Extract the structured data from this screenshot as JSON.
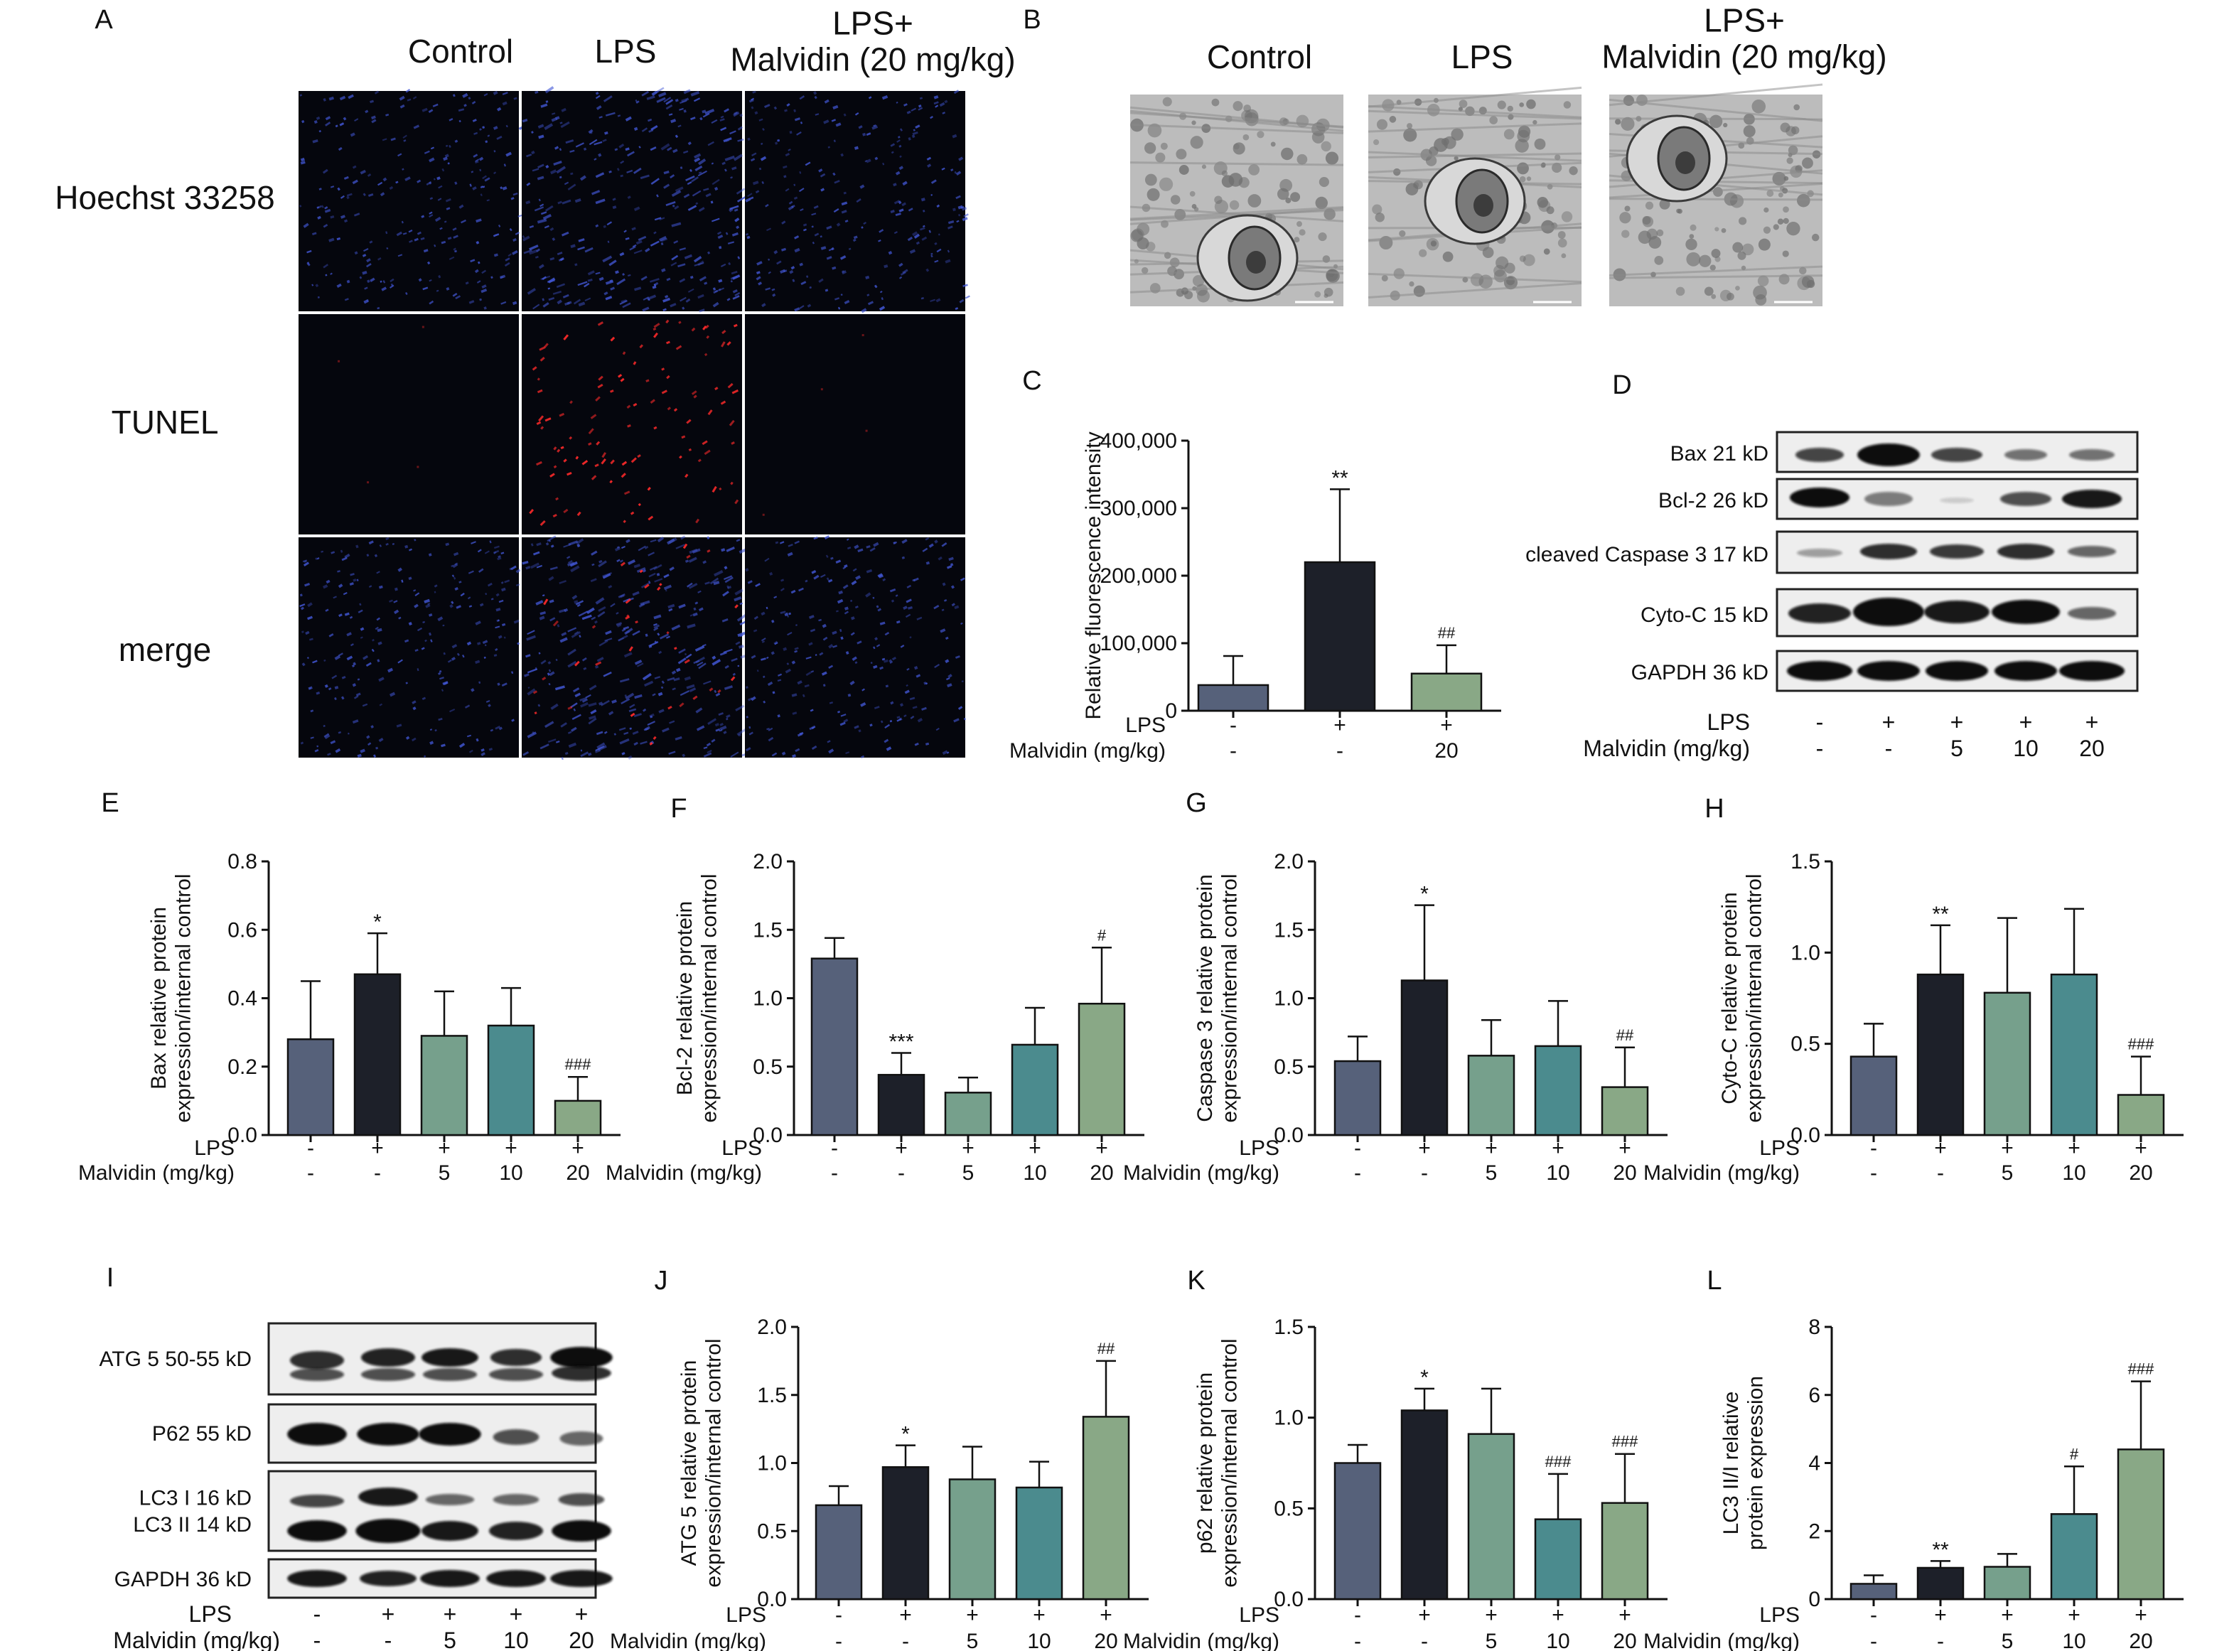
{
  "colors": {
    "control": "#56617a",
    "lps": "#1d2029",
    "m5": "#76a08c",
    "m10": "#4b8b8e",
    "m20": "#89a886",
    "blue_nuclei": "#4257d6",
    "red_tunel": "#ff2a2a",
    "em_gray": "#bcbcbc"
  },
  "panel_labels": [
    "A",
    "B",
    "C",
    "D",
    "E",
    "F",
    "G",
    "H",
    "I",
    "J",
    "K",
    "L"
  ],
  "panel_a": {
    "columns": [
      "Control",
      "LPS",
      "LPS+\nMalvidin (20 mg/kg)"
    ],
    "rows": [
      "Hoechst 33258",
      "TUNEL",
      "merge"
    ]
  },
  "panel_b": {
    "columns": [
      "Control",
      "LPS",
      "LPS+\nMalvidin (20 mg/kg)"
    ]
  },
  "panel_d": {
    "bands": [
      "Bax 21 kD",
      "Bcl-2 26 kD",
      "cleaved Caspase 3 17 kD",
      "Cyto-C 15 kD",
      "GAPDH 36 kD"
    ],
    "lps_label": "LPS",
    "malvidin_label": "Malvidin (mg/kg)",
    "lps": [
      "-",
      "+",
      "+",
      "+",
      "+"
    ],
    "malvidin": [
      "-",
      "-",
      "5",
      "10",
      "20"
    ]
  },
  "panel_i": {
    "bands": [
      "ATG 5 50-55 kD",
      "P62 55 kD",
      "LC3 I  16 kD\nLC3 II 14 kD",
      "GAPDH 36 kD"
    ],
    "lps_label": "LPS",
    "malvidin_label": "Malvidin (mg/kg)",
    "lps": [
      "-",
      "+",
      "+",
      "+",
      "+"
    ],
    "malvidin": [
      "-",
      "-",
      "5",
      "10",
      "20"
    ]
  },
  "chart_data": [
    {
      "panel": "C",
      "type": "bar",
      "ylabel": "Relative fluorescence intensity",
      "ylim": [
        0,
        400000
      ],
      "yticks": [
        "0",
        "100,000",
        "200,000",
        "300,000",
        "400,000"
      ],
      "row_labels": [
        "LPS",
        "Malvidin (mg/kg)"
      ],
      "lps": [
        "-",
        "+",
        "+"
      ],
      "malvidin": [
        "-",
        "-",
        "20"
      ],
      "values": [
        38000,
        220000,
        55000
      ],
      "errors": [
        43000,
        108000,
        42000
      ],
      "annotations": [
        "",
        "**",
        "##"
      ]
    },
    {
      "panel": "E",
      "type": "bar",
      "ylabel": "Bax relative protein\nexpression/internal control",
      "ylim": [
        0,
        0.8
      ],
      "yticks": [
        "0.0",
        "0.2",
        "0.4",
        "0.6",
        "0.8"
      ],
      "row_labels": [
        "LPS",
        "Malvidin (mg/kg)"
      ],
      "lps": [
        "-",
        "+",
        "+",
        "+",
        "+"
      ],
      "malvidin": [
        "-",
        "-",
        "5",
        "10",
        "20"
      ],
      "values": [
        0.28,
        0.47,
        0.29,
        0.32,
        0.1
      ],
      "errors": [
        0.17,
        0.12,
        0.13,
        0.11,
        0.07
      ],
      "annotations": [
        "",
        "*",
        "",
        "",
        "###"
      ]
    },
    {
      "panel": "F",
      "type": "bar",
      "ylabel": "Bcl-2 relative protein\nexpression/internal control",
      "ylim": [
        0,
        2.0
      ],
      "yticks": [
        "0.0",
        "0.5",
        "1.0",
        "1.5",
        "2.0"
      ],
      "row_labels": [
        "LPS",
        "Malvidin (mg/kg)"
      ],
      "lps": [
        "-",
        "+",
        "+",
        "+",
        "+"
      ],
      "malvidin": [
        "-",
        "-",
        "5",
        "10",
        "20"
      ],
      "values": [
        1.29,
        0.44,
        0.31,
        0.66,
        0.96
      ],
      "errors": [
        0.15,
        0.16,
        0.11,
        0.27,
        0.41
      ],
      "annotations": [
        "",
        "***",
        "",
        "",
        "#"
      ]
    },
    {
      "panel": "G",
      "type": "bar",
      "ylabel": "Caspase 3 relative protein\nexpression/internal control",
      "ylim": [
        0,
        2.0
      ],
      "yticks": [
        "0.0",
        "0.5",
        "1.0",
        "1.5",
        "2.0"
      ],
      "row_labels": [
        "LPS",
        "Malvidin (mg/kg)"
      ],
      "lps": [
        "-",
        "+",
        "+",
        "+",
        "+"
      ],
      "malvidin": [
        "-",
        "-",
        "5",
        "10",
        "20"
      ],
      "values": [
        0.54,
        1.13,
        0.58,
        0.65,
        0.35
      ],
      "errors": [
        0.18,
        0.55,
        0.26,
        0.33,
        0.29
      ],
      "annotations": [
        "",
        "*",
        "",
        "",
        "##"
      ]
    },
    {
      "panel": "H",
      "type": "bar",
      "ylabel": "Cyto-C relative protein\nexpression/internal control",
      "ylim": [
        0,
        1.5
      ],
      "yticks": [
        "0.0",
        "0.5",
        "1.0",
        "1.5"
      ],
      "row_labels": [
        "LPS",
        "Malvidin (mg/kg)"
      ],
      "lps": [
        "-",
        "+",
        "+",
        "+",
        "+"
      ],
      "malvidin": [
        "-",
        "-",
        "5",
        "10",
        "20"
      ],
      "values": [
        0.43,
        0.88,
        0.78,
        0.88,
        0.22
      ],
      "errors": [
        0.18,
        0.27,
        0.41,
        0.36,
        0.21
      ],
      "annotations": [
        "",
        "**",
        "",
        "",
        "###"
      ]
    },
    {
      "panel": "J",
      "type": "bar",
      "ylabel": "ATG 5 relative protein\nexpression/internal control",
      "ylim": [
        0,
        2.0
      ],
      "yticks": [
        "0.0",
        "0.5",
        "1.0",
        "1.5",
        "2.0"
      ],
      "row_labels": [
        "LPS",
        "Malvidin (mg/kg)"
      ],
      "lps": [
        "-",
        "+",
        "+",
        "+",
        "+"
      ],
      "malvidin": [
        "-",
        "-",
        "5",
        "10",
        "20"
      ],
      "values": [
        0.69,
        0.97,
        0.88,
        0.82,
        1.34
      ],
      "errors": [
        0.14,
        0.16,
        0.24,
        0.19,
        0.41
      ],
      "annotations": [
        "",
        "*",
        "",
        "",
        "##"
      ]
    },
    {
      "panel": "K",
      "type": "bar",
      "ylabel": "p62 relative protein\nexpression/internal control",
      "ylim": [
        0,
        1.5
      ],
      "yticks": [
        "0.0",
        "0.5",
        "1.0",
        "1.5"
      ],
      "row_labels": [
        "LPS",
        "Malvidin (mg/kg)"
      ],
      "lps": [
        "-",
        "+",
        "+",
        "+",
        "+"
      ],
      "malvidin": [
        "-",
        "-",
        "5",
        "10",
        "20"
      ],
      "values": [
        0.75,
        1.04,
        0.91,
        0.44,
        0.53
      ],
      "errors": [
        0.1,
        0.12,
        0.25,
        0.25,
        0.27
      ],
      "annotations": [
        "",
        "*",
        "",
        "###",
        "###"
      ]
    },
    {
      "panel": "L",
      "type": "bar",
      "ylabel": "LC3 II/I relative\nprotein expression",
      "ylim": [
        0,
        8
      ],
      "yticks": [
        "0",
        "2",
        "4",
        "6",
        "8"
      ],
      "row_labels": [
        "LPS",
        "Malvidin (mg/kg)"
      ],
      "lps": [
        "-",
        "+",
        "+",
        "+",
        "+"
      ],
      "malvidin": [
        "-",
        "-",
        "5",
        "10",
        "20"
      ],
      "values": [
        0.45,
        0.92,
        0.95,
        2.5,
        4.4
      ],
      "errors": [
        0.25,
        0.2,
        0.38,
        1.4,
        2.0
      ],
      "annotations": [
        "",
        "**",
        "",
        "#",
        "###"
      ]
    }
  ]
}
